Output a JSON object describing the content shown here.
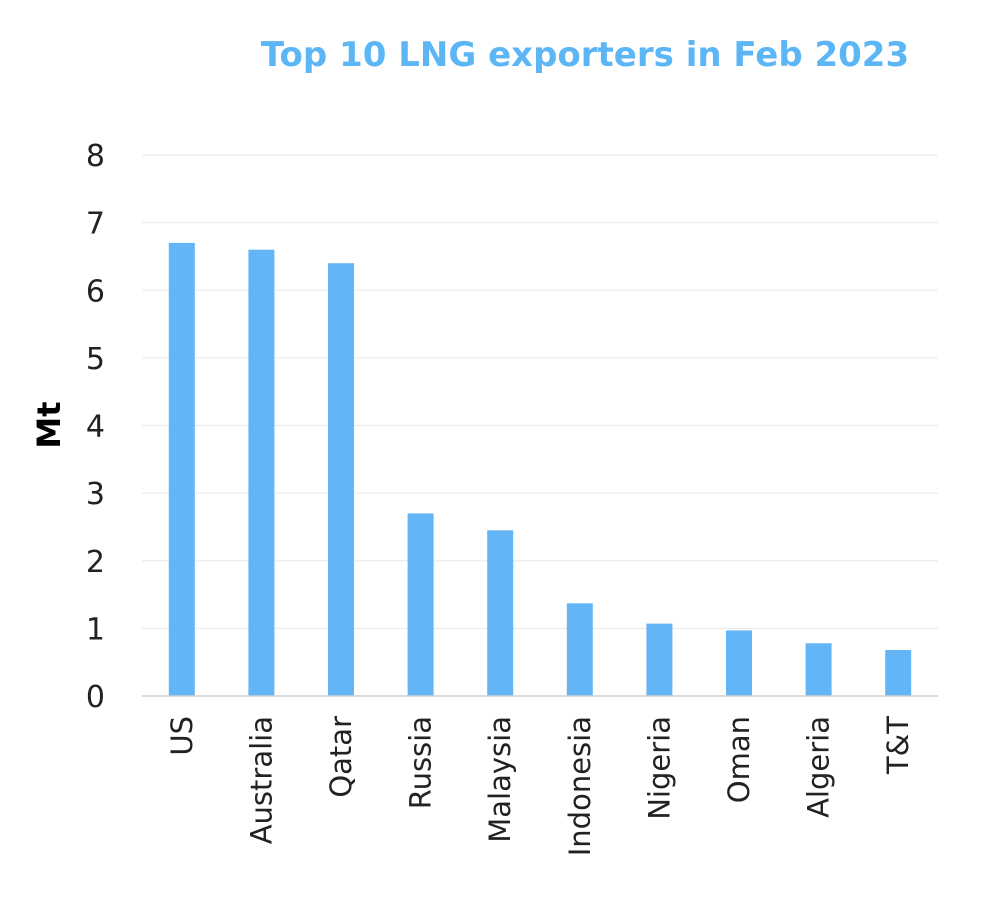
{
  "chart_data": {
    "type": "bar",
    "title": "Top 10 LNG exporters in Feb 2023",
    "ylabel": "Mt",
    "xlabel": "",
    "categories": [
      "US",
      "Australia",
      "Qatar",
      "Russia",
      "Malaysia",
      "Indonesia",
      "Nigeria",
      "Oman",
      "Algeria",
      "T&T"
    ],
    "values": [
      6.7,
      6.6,
      6.4,
      2.7,
      2.45,
      1.37,
      1.07,
      0.97,
      0.78,
      0.68
    ],
    "ylim": [
      0,
      8
    ],
    "yticks": [
      "0",
      "1",
      "2",
      "3",
      "4",
      "5",
      "6",
      "7",
      "8"
    ],
    "grid": true,
    "legend": "none",
    "bar_color": "#64b5f6",
    "title_color": "#5cb6f5"
  }
}
